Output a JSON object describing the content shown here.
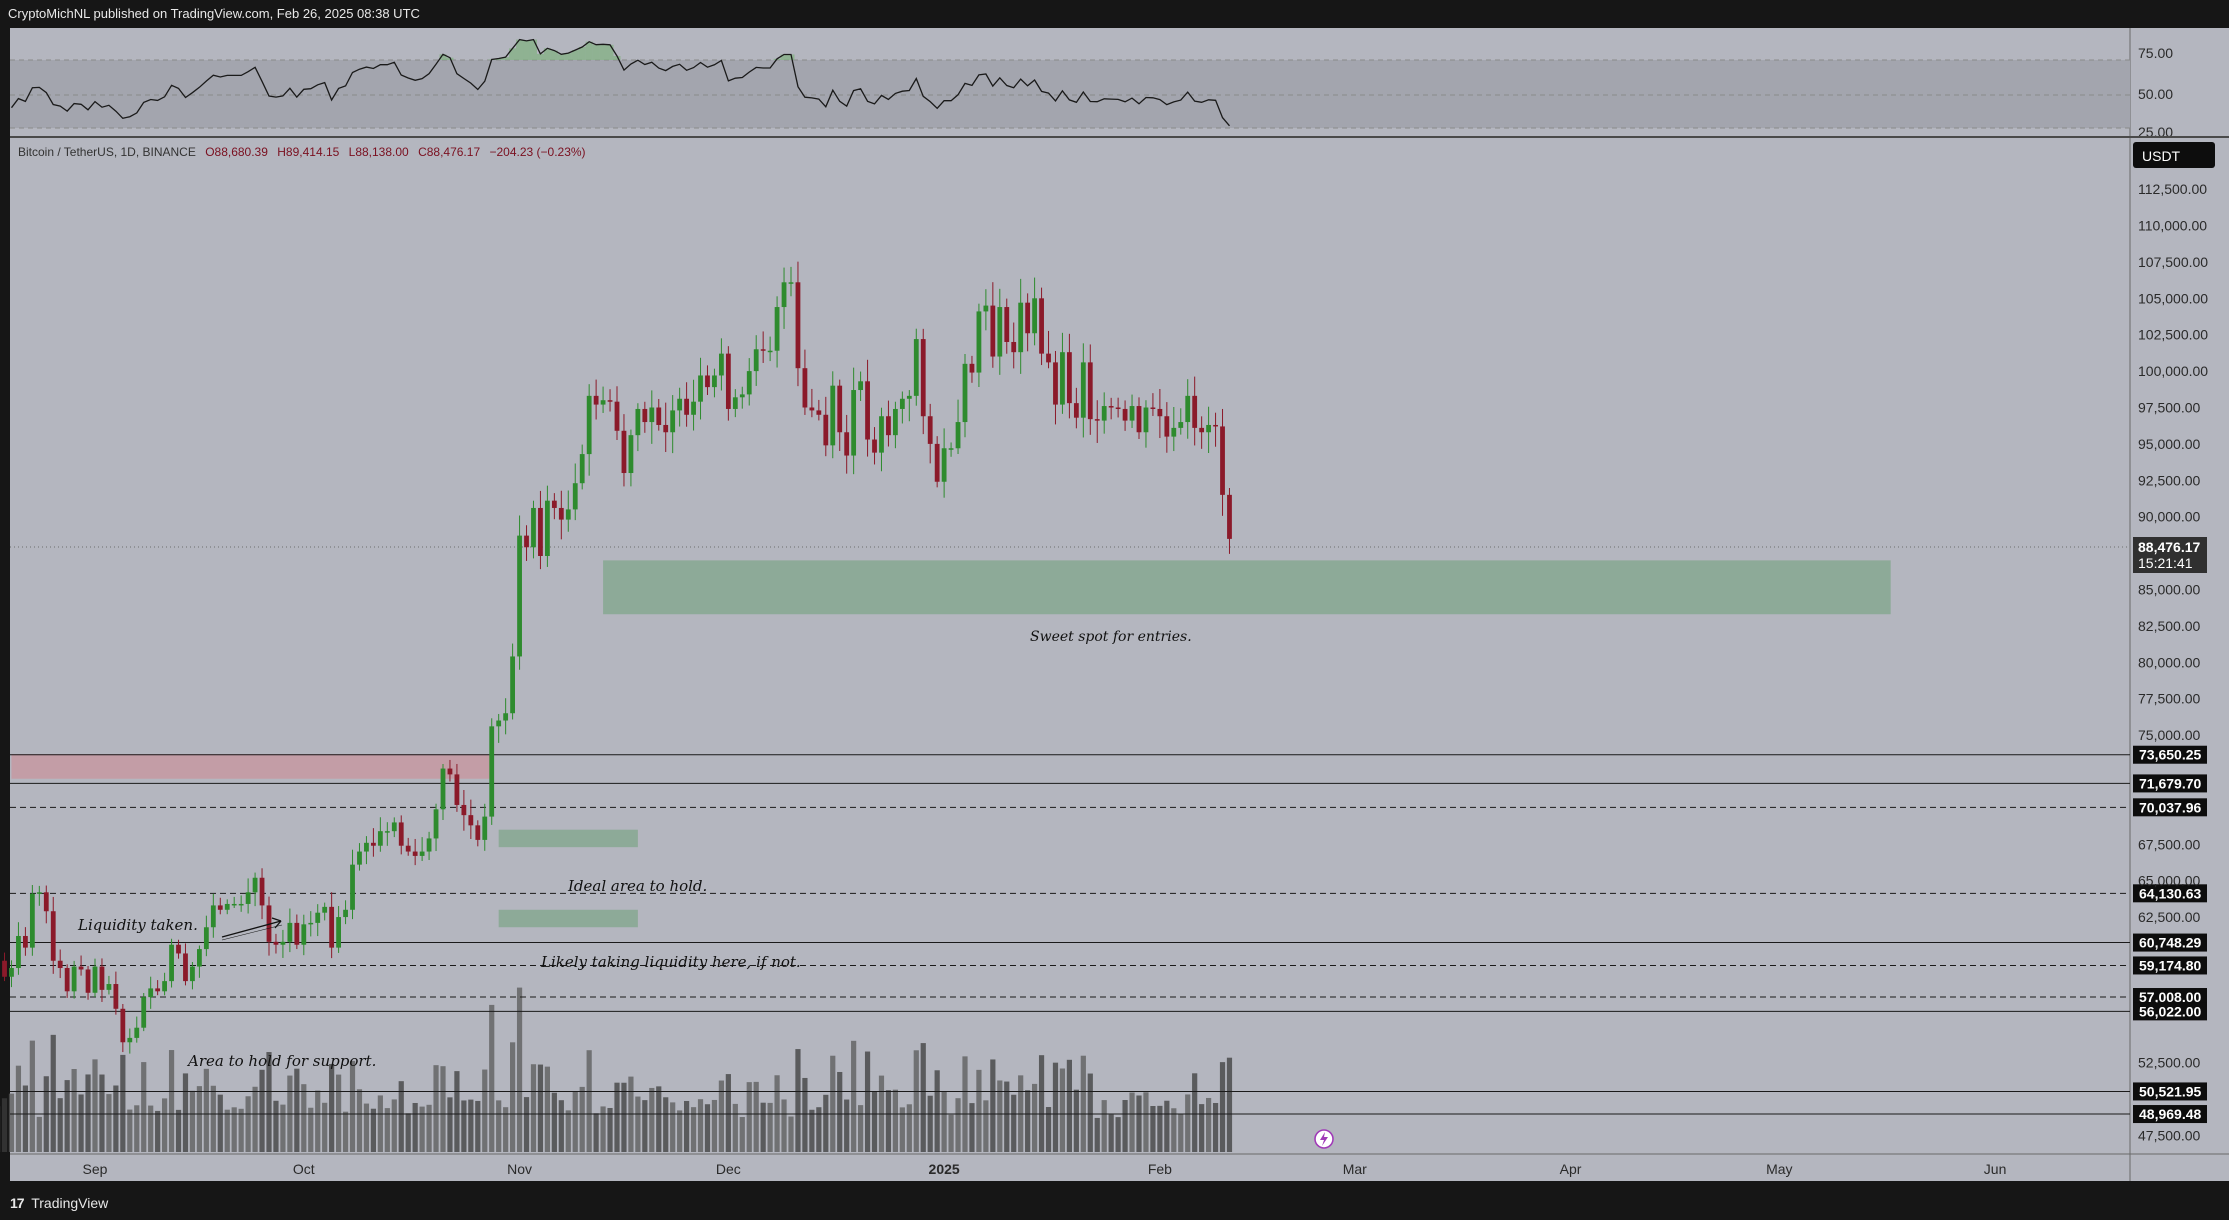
{
  "header": {
    "publisher": "CryptoMichNL",
    "published_text": "CryptoMichNL published on TradingView.com, Feb 26, 2025 08:38 UTC"
  },
  "footer": {
    "brand": "TradingView",
    "logo_glyph": "17"
  },
  "symbol_info": {
    "pair": "Bitcoin / TetherUS, 1D, BINANCE",
    "open": "O88,680.39",
    "high": "H89,414.15",
    "low": "L88,138.00",
    "close": "C88,476.17",
    "change": "−204.23 (−0.23%)"
  },
  "currency_badge": "USDT",
  "current_price": {
    "value": "88,476.17",
    "countdown": "15:21:41"
  },
  "colors": {
    "chart_bg": "#b4b6bf",
    "up": "#2e8b2e",
    "down": "#8b1a2a",
    "volume": "#4a4a4a",
    "zone_green": "#88a893",
    "zone_red": "#c49aa3",
    "tag_bg": "#0d0d0d"
  },
  "annotations": {
    "sweet_spot": "Sweet spot for entries.",
    "ideal_area": "Ideal area to hold.",
    "likely_taking": "Likely taking liquidity here, if not.",
    "liquidity_taken": "Liquidity taken.",
    "area_hold_support": "Area to hold for support."
  },
  "chart_data": [
    {
      "type": "candlestick",
      "title": "Bitcoin / TetherUS, 1D, BINANCE",
      "y_axis_labels": [
        "112,500.00",
        "110,000.00",
        "107,500.00",
        "105,000.00",
        "102,500.00",
        "100,000.00",
        "97,500.00",
        "95,000.00",
        "92,500.00",
        "90,000.00",
        "85,000.00",
        "82,500.00",
        "80,000.00",
        "77,500.00",
        "75,000.00",
        "67,500.00",
        "65,000.00",
        "62,500.00",
        "52,500.00",
        "47,500.00"
      ],
      "ylim": [
        46500,
        114500
      ],
      "x_axis_labels": [
        "Sep",
        "Oct",
        "Nov",
        "Dec",
        "2025",
        "Feb",
        "Mar",
        "Apr",
        "May",
        "Jun"
      ],
      "price_levels": [
        {
          "value": "73,650.25",
          "style": "solid"
        },
        {
          "value": "71,679.70",
          "style": "solid"
        },
        {
          "value": "70,037.96",
          "style": "dashed"
        },
        {
          "value": "64,130.63",
          "style": "dashed"
        },
        {
          "value": "60,748.29",
          "style": "solid"
        },
        {
          "value": "59,174.80",
          "style": "dashed"
        },
        {
          "value": "57,008.00",
          "style": "dashed"
        },
        {
          "value": "56,022.00",
          "style": "solid"
        },
        {
          "value": "50,521.95",
          "style": "solid"
        },
        {
          "value": "48,969.48",
          "style": "solid"
        }
      ],
      "zones": [
        {
          "name": "sweet-spot-zone",
          "y": [
            83300,
            87000
          ],
          "date": [
            "2024-11-13",
            "2025-05-17"
          ]
        },
        {
          "name": "resistance-zone",
          "y": [
            72000,
            73700
          ],
          "date": [
            "2024-08-20",
            "2024-10-28"
          ]
        },
        {
          "name": "ideal-hold-zone",
          "y": [
            67300,
            68500
          ],
          "date": [
            "2024-10-29",
            "2024-11-18"
          ]
        },
        {
          "name": "liquidity-zone",
          "y": [
            61800,
            63000
          ],
          "date": [
            "2024-10-29",
            "2024-11-18"
          ]
        }
      ],
      "closes_daily_from_2024-08-01": [
        64600,
        65300,
        61500,
        58100,
        54000,
        56000,
        55200,
        60900,
        60900,
        58700,
        58700,
        59300,
        60700,
        61300,
        58600,
        57600,
        59000,
        59500,
        58400,
        59000,
        61200,
        60400,
        64100,
        64200,
        62900,
        59500,
        59000,
        57400,
        59100,
        58900,
        57300,
        59100,
        57500,
        57900,
        56200,
        53900,
        54200,
        54900,
        57000,
        57600,
        57400,
        58100,
        60600,
        60000,
        58100,
        59100,
        60300,
        61800,
        63300,
        63000,
        63400,
        63400,
        63400,
        64200,
        65200,
        63300,
        60800,
        60600,
        60800,
        62100,
        60600,
        62000,
        62100,
        62800,
        63200,
        60400,
        62500,
        63000,
        66100,
        67000,
        67600,
        67400,
        68400,
        68400,
        69000,
        67400,
        67000,
        66700,
        67000,
        67900,
        69900,
        72700,
        72300,
        70200,
        69500,
        68800,
        67800,
        69400,
        75600,
        76000,
        76500,
        80400,
        88700,
        87900,
        90600,
        87300,
        91100,
        90600,
        89800,
        90500,
        92300,
        94300,
        98300,
        97700,
        98000,
        97900,
        95900,
        93000,
        95600,
        97400,
        96500,
        97500,
        96300,
        95800,
        97300,
        98100,
        97000,
        97900,
        99700,
        98900,
        99700,
        101200,
        97400,
        98200,
        98400,
        100000,
        101500,
        101400,
        101400,
        104400,
        106100,
        106100,
        100200,
        97500,
        97300,
        97000,
        94900,
        99000,
        95800,
        94200,
        98700,
        99300,
        95300,
        94400,
        96900,
        95600,
        97400,
        98100,
        98300,
        102200,
        96900,
        95000,
        92400,
        94700,
        94700,
        96500,
        100500,
        99900,
        104100,
        104500,
        101000,
        104400,
        102000,
        101300,
        104700,
        102600,
        105000,
        101200,
        100600,
        97700,
        101300,
        97800,
        96800,
        100600,
        96700,
        96600,
        97600,
        97500,
        97400,
        96600,
        97600,
        95800,
        97500,
        97400,
        96900,
        95500,
        96100,
        96500,
        98300,
        96100,
        95800,
        96300,
        96200,
        91500,
        88476
      ]
    },
    {
      "type": "line",
      "title": "RSI",
      "y_axis_labels": [
        "75.00",
        "50.00",
        "25.00"
      ],
      "ylim": [
        24,
        82
      ],
      "bands": {
        "upper": 70,
        "middle": 50,
        "lower": 30
      }
    }
  ]
}
